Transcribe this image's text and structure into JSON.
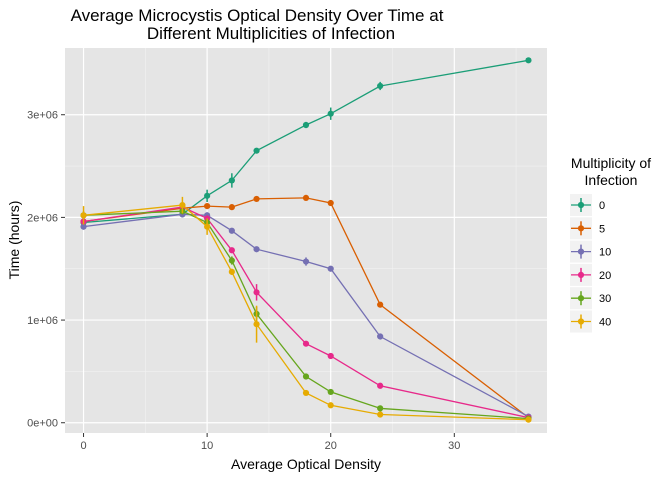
{
  "chart_data": {
    "type": "line",
    "title_lines": [
      "Average Microcystis Optical Density Over Time at",
      "Different Multiplicities of Infection"
    ],
    "xlabel": "Average Optical Density",
    "ylabel": "Time (hours)",
    "xlim": [
      -1.5,
      37.5
    ],
    "ylim": [
      -100000,
      3650000
    ],
    "x_ticks": [
      0,
      10,
      20,
      30
    ],
    "x_tick_labels": [
      "0",
      "10",
      "20",
      "30"
    ],
    "y_ticks": [
      0,
      1000000,
      2000000,
      3000000
    ],
    "y_tick_labels": [
      "0e+00",
      "1e+06",
      "2e+06",
      "3e+06"
    ],
    "grid": true,
    "background": "#e5e5e5",
    "legend": {
      "title_lines": [
        "Multiplicity of",
        "Infection"
      ],
      "position": "right"
    },
    "series": [
      {
        "name": "0",
        "color": "#1b9e77",
        "x": [
          0,
          8,
          10,
          12,
          14,
          18,
          20,
          24,
          36
        ],
        "y": [
          1950000,
          2030000,
          2210000,
          2360000,
          2650000,
          2900000,
          3010000,
          3280000,
          3530000
        ],
        "err": [
          40000,
          30000,
          60000,
          70000,
          20000,
          30000,
          60000,
          40000,
          20000
        ]
      },
      {
        "name": "5",
        "color": "#d95f02",
        "x": [
          0,
          8,
          10,
          12,
          14,
          18,
          20,
          24,
          36
        ],
        "y": [
          1960000,
          2090000,
          2110000,
          2100000,
          2180000,
          2190000,
          2140000,
          1150000,
          50000
        ],
        "err": [
          20000,
          30000,
          20000,
          20000,
          20000,
          20000,
          20000,
          20000,
          15000
        ]
      },
      {
        "name": "10",
        "color": "#7570b3",
        "x": [
          0,
          8,
          10,
          12,
          14,
          18,
          20,
          24,
          36
        ],
        "y": [
          1910000,
          2030000,
          2020000,
          1870000,
          1690000,
          1570000,
          1500000,
          840000,
          60000
        ],
        "err": [
          30000,
          30000,
          30000,
          20000,
          20000,
          40000,
          20000,
          20000,
          15000
        ]
      },
      {
        "name": "20",
        "color": "#e7298a",
        "x": [
          0,
          8,
          10,
          12,
          14,
          18,
          20,
          24,
          36
        ],
        "y": [
          1960000,
          2100000,
          1990000,
          1680000,
          1270000,
          770000,
          650000,
          360000,
          50000
        ],
        "err": [
          20000,
          40000,
          30000,
          20000,
          80000,
          20000,
          20000,
          15000,
          10000
        ]
      },
      {
        "name": "30",
        "color": "#66a61e",
        "x": [
          0,
          8,
          10,
          12,
          14,
          18,
          20,
          24,
          36
        ],
        "y": [
          2020000,
          2060000,
          1950000,
          1580000,
          1060000,
          450000,
          300000,
          140000,
          40000
        ],
        "err": [
          40000,
          30000,
          40000,
          40000,
          70000,
          20000,
          20000,
          10000,
          10000
        ]
      },
      {
        "name": "40",
        "color": "#e6ab02",
        "x": [
          0,
          8,
          10,
          12,
          14,
          18,
          20,
          24,
          36
        ],
        "y": [
          2020000,
          2120000,
          1910000,
          1470000,
          960000,
          290000,
          170000,
          80000,
          30000
        ],
        "err": [
          90000,
          80000,
          80000,
          30000,
          180000,
          20000,
          20000,
          10000,
          10000
        ]
      }
    ]
  }
}
